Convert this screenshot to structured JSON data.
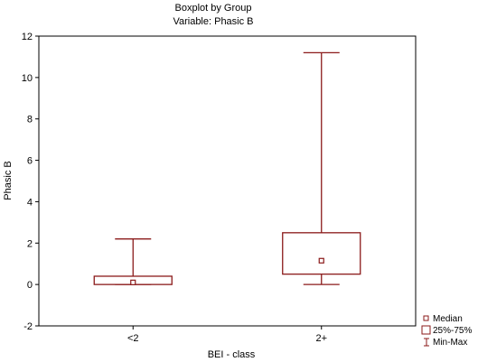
{
  "colors": {
    "box": "#8b1a1a",
    "axis": "#000000",
    "background": "#ffffff"
  },
  "chart_data": {
    "type": "boxplot",
    "title": "Boxplot by Group",
    "subtitle": "Variable: Phasic B",
    "xlabel": "BEI - class",
    "ylabel": "Phasic B",
    "ylim": [
      -2,
      12
    ],
    "yticks": [
      "-2",
      "0",
      "2",
      "4",
      "6",
      "8",
      "10",
      "12"
    ],
    "ytick_values": [
      -2,
      0,
      2,
      4,
      6,
      8,
      10,
      12
    ],
    "categories": [
      "<2",
      "2+"
    ],
    "groups": [
      {
        "category": "<2",
        "min": 0,
        "q1": 0,
        "median": 0.1,
        "q3": 0.4,
        "max": 2.2
      },
      {
        "category": "2+",
        "min": 0,
        "q1": 0.5,
        "median": 1.15,
        "q3": 2.5,
        "max": 11.2
      }
    ],
    "grid": false,
    "legend": {
      "placement": "bottom-right",
      "entries": [
        "Median",
        "25%-75%",
        "Min-Max"
      ]
    }
  }
}
